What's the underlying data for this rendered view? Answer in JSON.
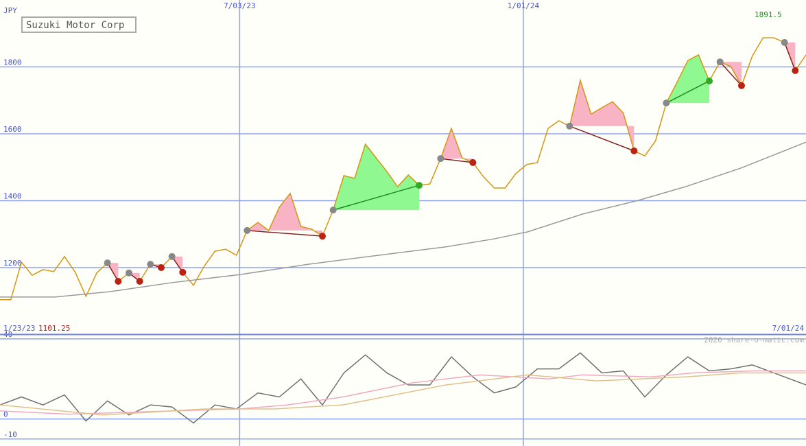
{
  "chart_data": [
    {
      "type": "line",
      "title": "Suzuki Motor Corp",
      "y_label": "JPY",
      "high_label": "1891.5",
      "low_label": "1101.25",
      "start_label": "1/23/23",
      "end_label": "7/01/24",
      "xlim": [
        0,
        75
      ],
      "xticks": [
        {
          "value": 22.3,
          "label": "7/03/23"
        },
        {
          "value": 48.7,
          "label": "1/01/24"
        }
      ],
      "ylim": [
        1000,
        2000
      ],
      "yticks": [
        1200,
        1400,
        1600,
        1800
      ],
      "grid": true,
      "series": [
        {
          "color": "#d4960f",
          "values": [
            1104,
            1104,
            1216,
            1177,
            1194,
            1188,
            1233,
            1186,
            1114,
            1184,
            1214,
            1159,
            1184,
            1159,
            1210,
            1200,
            1233,
            1186,
            1147,
            1204,
            1249,
            1255,
            1237,
            1311,
            1335,
            1311,
            1381,
            1422,
            1323,
            1315,
            1294,
            1372,
            1475,
            1467,
            1569,
            1528,
            1487,
            1442,
            1477,
            1446,
            1450,
            1526,
            1616,
            1528,
            1514,
            1471,
            1438,
            1438,
            1481,
            1508,
            1514,
            1616,
            1639,
            1623,
            1760,
            1659,
            1678,
            1696,
            1662,
            1549,
            1534,
            1579,
            1692,
            1754,
            1819,
            1836,
            1758,
            1815,
            1801,
            1744,
            1832,
            1887,
            1887,
            1873,
            1789,
            1836
          ]
        },
        {
          "color": "#999999",
          "x": [
            0,
            5.1,
            10.2,
            16,
            22.3,
            28.7,
            33.8,
            41.5,
            46,
            49.1,
            54.2,
            59.4,
            63.8,
            68.9,
            75
          ],
          "values": [
            1112,
            1112,
            1128,
            1155,
            1179,
            1210,
            1231,
            1262,
            1286,
            1307,
            1360,
            1401,
            1442,
            1497,
            1575
          ]
        }
      ],
      "signals": [
        [
          10,
          11
        ],
        [
          12,
          13
        ],
        [
          14,
          15
        ],
        [
          16,
          17
        ],
        [
          23,
          30
        ],
        [
          31,
          39
        ],
        [
          41,
          44
        ],
        [
          53,
          59
        ],
        [
          62,
          66
        ],
        [
          67,
          69
        ],
        [
          73,
          74
        ]
      ]
    },
    {
      "type": "line",
      "credit": "2026 share-o-matic.com",
      "xlim": [
        0,
        75
      ],
      "ylim": [
        -13.5,
        42
      ],
      "yticks": [
        40,
        0,
        -10
      ],
      "series": [
        {
          "color": "#707070",
          "x": [
            0,
            2,
            4,
            6,
            8,
            10,
            12,
            14,
            16,
            18,
            20,
            22,
            24,
            26,
            28,
            30,
            32,
            34,
            36,
            38,
            40,
            42,
            44,
            46,
            48,
            50,
            52,
            54,
            56,
            58,
            60,
            62,
            64,
            66,
            68,
            70,
            72,
            75
          ],
          "values": [
            7,
            11,
            7,
            12,
            -1,
            9,
            2,
            7,
            6,
            -2,
            7,
            5,
            13,
            11,
            20,
            7,
            23,
            32,
            23,
            17,
            17,
            31,
            21,
            13,
            16,
            25,
            25,
            33,
            23,
            24,
            11,
            22,
            31,
            24,
            25,
            27,
            23,
            17
          ]
        },
        {
          "color": "#f2a8c0",
          "x": [
            0,
            6.4,
            16,
            22.3,
            26.8,
            31.9,
            38.3,
            44.7,
            51.1,
            54.2,
            60.6,
            64.5,
            70.2,
            75
          ],
          "values": [
            4,
            2.4,
            4,
            5,
            7,
            11,
            18,
            22,
            20,
            22,
            21,
            23,
            24,
            24
          ]
        },
        {
          "color": "#e0c08a",
          "x": [
            0,
            9.6,
            19.1,
            25.5,
            31.9,
            41.5,
            49.1,
            55.5,
            63.8,
            68.9,
            75
          ],
          "values": [
            7,
            2,
            5,
            5,
            7,
            17,
            22,
            19,
            21,
            23,
            23
          ]
        }
      ]
    }
  ]
}
